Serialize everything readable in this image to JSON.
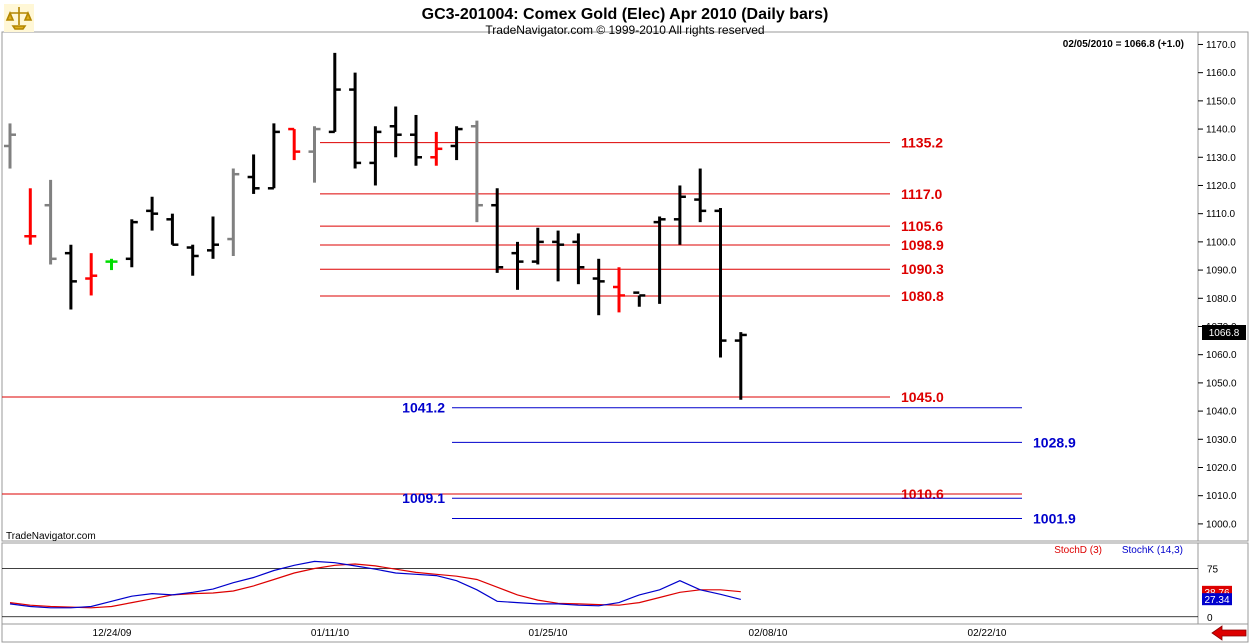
{
  "title": "GC3-201004:  Comex Gold (Elec) Apr 2010  (Daily bars)",
  "subtitle": "TradeNavigator.com © 1999-2010 All rights reserved",
  "readout": "02/05/2010 = 1066.8 (+1.0)",
  "watermark": "TradeNavigator.com",
  "last_price_label": "1066.8",
  "colors": {
    "up": "#000000",
    "down": "#ff0000",
    "neutral": "#808080",
    "green": "#00dd00",
    "red_level": "#dd0000",
    "blue_level": "#0000cc",
    "stoch_d": "#dd0000",
    "stoch_k": "#0000cc"
  },
  "icons": [
    "trade-navigator-logo-icon",
    "scroll-left-arrow-icon"
  ],
  "chart_data": [
    {
      "type": "ohlc",
      "title": "GC3-201004:  Comex Gold (Elec) Apr 2010  (Daily bars)",
      "ylim": [
        995,
        1173
      ],
      "y_ticks": [
        "1000.0",
        "1010.0",
        "1020.0",
        "1030.0",
        "1040.0",
        "1050.0",
        "1060.0",
        "1070.0",
        "1080.0",
        "1090.0",
        "1100.0",
        "1110.0",
        "1120.0",
        "1130.0",
        "1140.0",
        "1150.0",
        "1160.0",
        "1170.0"
      ],
      "x_tick_labels": [
        "12/24/09",
        "01/11/10",
        "01/25/10",
        "02/08/10",
        "02/22/10"
      ],
      "bars": [
        {
          "o": 1134.0,
          "h": 1142.0,
          "l": 1126.0,
          "c": 1138.0,
          "color": "neutral"
        },
        {
          "o": 1102.0,
          "h": 1119.0,
          "l": 1099.0,
          "c": 1102.0,
          "color": "down"
        },
        {
          "o": 1113.0,
          "h": 1122.0,
          "l": 1092.0,
          "c": 1094.0,
          "color": "neutral"
        },
        {
          "o": 1096.0,
          "h": 1099.0,
          "l": 1076.0,
          "c": 1086.0,
          "color": "up"
        },
        {
          "o": 1087.0,
          "h": 1096.0,
          "l": 1081.0,
          "c": 1088.0,
          "color": "down"
        },
        {
          "o": 1093.0,
          "h": 1094.0,
          "l": 1090.0,
          "c": 1093.0,
          "color": "green"
        },
        {
          "o": 1094.0,
          "h": 1108.0,
          "l": 1091.0,
          "c": 1107.0,
          "color": "up"
        },
        {
          "o": 1111.0,
          "h": 1116.0,
          "l": 1104.0,
          "c": 1110.0,
          "color": "up"
        },
        {
          "o": 1108.0,
          "h": 1110.0,
          "l": 1099.0,
          "c": 1099.0,
          "color": "up"
        },
        {
          "o": 1098.0,
          "h": 1099.0,
          "l": 1088.0,
          "c": 1095.0,
          "color": "up"
        },
        {
          "o": 1097.0,
          "h": 1109.0,
          "l": 1094.0,
          "c": 1099.0,
          "color": "up"
        },
        {
          "o": 1101.0,
          "h": 1126.0,
          "l": 1095.0,
          "c": 1124.0,
          "color": "neutral"
        },
        {
          "o": 1123.0,
          "h": 1131.0,
          "l": 1117.0,
          "c": 1119.0,
          "color": "up"
        },
        {
          "o": 1119.0,
          "h": 1142.0,
          "l": 1119.0,
          "c": 1139.0,
          "color": "up"
        },
        {
          "o": 1140.0,
          "h": 1140.0,
          "l": 1129.0,
          "c": 1132.0,
          "color": "down"
        },
        {
          "o": 1132.0,
          "h": 1141.0,
          "l": 1121.0,
          "c": 1140.0,
          "color": "neutral"
        },
        {
          "o": 1139.0,
          "h": 1167.0,
          "l": 1139.0,
          "c": 1154.0,
          "color": "up"
        },
        {
          "o": 1154.0,
          "h": 1160.0,
          "l": 1126.0,
          "c": 1128.0,
          "color": "up"
        },
        {
          "o": 1128.0,
          "h": 1141.0,
          "l": 1120.0,
          "c": 1139.0,
          "color": "up"
        },
        {
          "o": 1141.0,
          "h": 1148.0,
          "l": 1130.0,
          "c": 1138.0,
          "color": "up"
        },
        {
          "o": 1138.0,
          "h": 1145.0,
          "l": 1127.0,
          "c": 1130.0,
          "color": "up"
        },
        {
          "o": 1130.0,
          "h": 1139.0,
          "l": 1127.0,
          "c": 1133.0,
          "color": "down"
        },
        {
          "o": 1134.0,
          "h": 1141.0,
          "l": 1129.0,
          "c": 1140.0,
          "color": "up"
        },
        {
          "o": 1141.0,
          "h": 1143.0,
          "l": 1107.0,
          "c": 1113.0,
          "color": "neutral"
        },
        {
          "o": 1113.0,
          "h": 1119.0,
          "l": 1089.0,
          "c": 1091.0,
          "color": "up"
        },
        {
          "o": 1096.0,
          "h": 1100.0,
          "l": 1083.0,
          "c": 1093.0,
          "color": "up"
        },
        {
          "o": 1093.0,
          "h": 1105.0,
          "l": 1092.0,
          "c": 1100.0,
          "color": "up"
        },
        {
          "o": 1100.0,
          "h": 1104.0,
          "l": 1086.0,
          "c": 1099.0,
          "color": "up"
        },
        {
          "o": 1100.0,
          "h": 1103.0,
          "l": 1085.0,
          "c": 1091.0,
          "color": "up"
        },
        {
          "o": 1087.0,
          "h": 1094.0,
          "l": 1074.0,
          "c": 1086.0,
          "color": "up"
        },
        {
          "o": 1084.0,
          "h": 1091.0,
          "l": 1075.0,
          "c": 1081.0,
          "color": "down"
        },
        {
          "o": 1082.0,
          "h": 1081.0,
          "l": 1077.0,
          "c": 1081.0,
          "color": "up"
        },
        {
          "o": 1107.0,
          "h": 1109.0,
          "l": 1078.0,
          "c": 1108.0,
          "color": "up"
        },
        {
          "o": 1108.0,
          "h": 1120.0,
          "l": 1099.0,
          "c": 1116.0,
          "color": "up"
        },
        {
          "o": 1115.0,
          "h": 1126.0,
          "l": 1107.0,
          "c": 1111.0,
          "color": "up"
        },
        {
          "o": 1111.0,
          "h": 1112.0,
          "l": 1059.0,
          "c": 1065.0,
          "color": "up"
        },
        {
          "o": 1065.0,
          "h": 1068.0,
          "l": 1044.0,
          "c": 1067.0,
          "color": "up"
        }
      ],
      "levels": [
        {
          "value": 1135.2,
          "label": "1135.2",
          "color": "red",
          "x_start": "01/11/10",
          "label_side": "right"
        },
        {
          "value": 1117.0,
          "label": "1117.0",
          "color": "red",
          "x_start": "01/11/10",
          "label_side": "right"
        },
        {
          "value": 1105.6,
          "label": "1105.6",
          "color": "red",
          "x_start": "01/11/10",
          "label_side": "right"
        },
        {
          "value": 1098.9,
          "label": "1098.9",
          "color": "red",
          "x_start": "01/11/10",
          "label_side": "right"
        },
        {
          "value": 1090.3,
          "label": "1090.3",
          "color": "red",
          "x_start": "01/11/10",
          "label_side": "right"
        },
        {
          "value": 1080.8,
          "label": "1080.8",
          "color": "red",
          "x_start": "01/11/10",
          "label_side": "right"
        },
        {
          "value": 1045.0,
          "label": "1045.0",
          "color": "red",
          "x_start": "start",
          "label_side": "right"
        },
        {
          "value": 1041.2,
          "label": "1041.2",
          "color": "blue",
          "x_start": "01/20/10",
          "label_side": "left"
        },
        {
          "value": 1028.9,
          "label": "1028.9",
          "color": "blue",
          "x_start": "01/20/10",
          "label_side": "right-far"
        },
        {
          "value": 1010.6,
          "label": "1010.6",
          "color": "red",
          "x_start": "start",
          "label_side": "right"
        },
        {
          "value": 1009.1,
          "label": "1009.1",
          "color": "blue",
          "x_start": "01/20/10",
          "label_side": "left"
        },
        {
          "value": 1001.9,
          "label": "1001.9",
          "color": "blue",
          "x_start": "01/20/10",
          "label_side": "right-far"
        }
      ]
    },
    {
      "type": "line",
      "ylim": [
        -5,
        110
      ],
      "y_ticks": [
        "75",
        "0"
      ],
      "legend": [
        "StochD (3)",
        "StochK (14,3)"
      ],
      "value_labels": [
        "38.76",
        "27.34"
      ],
      "series": [
        {
          "name": "StochD (3)",
          "color": "red",
          "values": [
            22,
            18,
            16,
            15,
            14,
            16,
            22,
            28,
            34,
            36,
            37,
            40,
            48,
            58,
            68,
            75,
            80,
            82,
            79,
            74,
            69,
            66,
            63,
            58,
            46,
            34,
            26,
            21,
            20,
            19,
            18,
            22,
            30,
            38,
            42,
            42,
            39
          ]
        },
        {
          "name": "StochK (14,3)",
          "color": "blue",
          "values": [
            20,
            16,
            14,
            14,
            16,
            24,
            32,
            36,
            34,
            38,
            43,
            53,
            61,
            72,
            80,
            86,
            84,
            79,
            74,
            68,
            66,
            64,
            56,
            42,
            24,
            22,
            20,
            20,
            18,
            17,
            22,
            34,
            42,
            56,
            42,
            35,
            27
          ]
        }
      ]
    }
  ]
}
